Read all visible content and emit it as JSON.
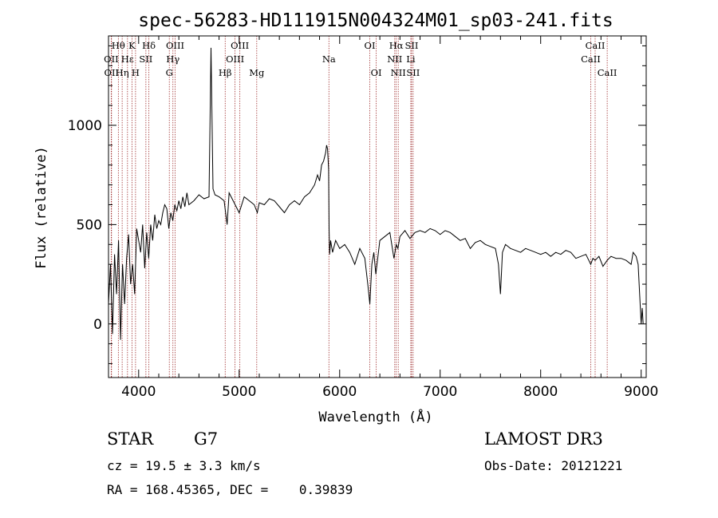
{
  "chart_data": {
    "type": "line",
    "title": "spec-56283-HD111915N004324M01_sp03-241.fits",
    "xlabel": "Wavelength (Å)",
    "ylabel": "Flux (relative)",
    "xlim": [
      3700,
      9050
    ],
    "ylim": [
      -270,
      1450
    ],
    "xticks": [
      4000,
      5000,
      6000,
      7000,
      8000,
      9000
    ],
    "yticks": [
      0,
      500,
      1000
    ],
    "spectral_lines": [
      {
        "label": "Hθ",
        "wavelength": 3798,
        "row": 0
      },
      {
        "label": "K",
        "wavelength": 3934,
        "row": 0
      },
      {
        "label": "Hδ",
        "wavelength": 4102,
        "row": 0
      },
      {
        "label": "OII",
        "wavelength": 3727,
        "row": 1
      },
      {
        "label": "Hε",
        "wavelength": 3889,
        "row": 1
      },
      {
        "label": "SII",
        "wavelength": 4072,
        "row": 1
      },
      {
        "label": "OII",
        "wavelength": 3730,
        "row": 2
      },
      {
        "label": "Hη",
        "wavelength": 3836,
        "row": 2
      },
      {
        "label": "H",
        "wavelength": 3969,
        "row": 2
      },
      {
        "label": "OIII",
        "wavelength": 4363,
        "row": 0
      },
      {
        "label": "Hγ",
        "wavelength": 4341,
        "row": 1
      },
      {
        "label": "G",
        "wavelength": 4305,
        "row": 2
      },
      {
        "label": "OIII",
        "wavelength": 5007,
        "row": 0
      },
      {
        "label": "OIII",
        "wavelength": 4959,
        "row": 1
      },
      {
        "label": "Hβ",
        "wavelength": 4861,
        "row": 2
      },
      {
        "label": "Mg",
        "wavelength": 5175,
        "row": 2
      },
      {
        "label": "Na",
        "wavelength": 5893,
        "row": 1
      },
      {
        "label": "OI",
        "wavelength": 6300,
        "row": 0
      },
      {
        "label": "OI",
        "wavelength": 6364,
        "row": 2
      },
      {
        "label": "Hα",
        "wavelength": 6563,
        "row": 0
      },
      {
        "label": "NII",
        "wavelength": 6548,
        "row": 1
      },
      {
        "label": "NII",
        "wavelength": 6583,
        "row": 2
      },
      {
        "label": "SII",
        "wavelength": 6716,
        "row": 0
      },
      {
        "label": "Li",
        "wavelength": 6708,
        "row": 1
      },
      {
        "label": "SII",
        "wavelength": 6731,
        "row": 2
      },
      {
        "label": "CaII",
        "wavelength": 8542,
        "row": 0
      },
      {
        "label": "CaII",
        "wavelength": 8498,
        "row": 1
      },
      {
        "label": "CaII",
        "wavelength": 8662,
        "row": 2
      }
    ],
    "series": [
      {
        "x": [
          3700,
          3720,
          3740,
          3760,
          3780,
          3800,
          3820,
          3840,
          3860,
          3880,
          3900,
          3920,
          3940,
          3960,
          3980,
          4000,
          4020,
          4040,
          4060,
          4080,
          4100,
          4120,
          4140,
          4160,
          4180,
          4200,
          4220,
          4240,
          4260,
          4280,
          4300,
          4320,
          4340,
          4360,
          4380,
          4400,
          4420,
          4440,
          4460,
          4480,
          4500,
          4550,
          4600,
          4650,
          4700,
          4720,
          4740,
          4760,
          4800,
          4850,
          4880,
          4900,
          4950,
          5000,
          5050,
          5100,
          5150,
          5180,
          5200,
          5250,
          5300,
          5350,
          5400,
          5450,
          5500,
          5550,
          5600,
          5650,
          5700,
          5750,
          5780,
          5800,
          5820,
          5840,
          5860,
          5870,
          5880,
          5890,
          5895,
          5900,
          5910,
          5930,
          5960,
          6000,
          6050,
          6100,
          6150,
          6200,
          6250,
          6280,
          6300,
          6320,
          6340,
          6360,
          6400,
          6450,
          6500,
          6540,
          6563,
          6580,
          6600,
          6650,
          6700,
          6750,
          6800,
          6850,
          6900,
          6950,
          7000,
          7050,
          7100,
          7150,
          7200,
          7250,
          7300,
          7350,
          7400,
          7450,
          7500,
          7550,
          7580,
          7600,
          7620,
          7650,
          7700,
          7750,
          7800,
          7850,
          7900,
          7950,
          8000,
          8050,
          8100,
          8150,
          8200,
          8250,
          8300,
          8350,
          8400,
          8450,
          8498,
          8520,
          8542,
          8580,
          8620,
          8662,
          8700,
          8750,
          8800,
          8850,
          8900,
          8920,
          8950,
          8970,
          8990,
          9000,
          9010,
          9020
        ],
        "y": [
          100,
          300,
          -50,
          350,
          150,
          420,
          -80,
          300,
          100,
          330,
          450,
          200,
          300,
          150,
          480,
          420,
          360,
          500,
          280,
          460,
          330,
          500,
          420,
          550,
          480,
          520,
          500,
          560,
          600,
          580,
          480,
          560,
          520,
          600,
          570,
          620,
          580,
          640,
          590,
          660,
          600,
          620,
          650,
          630,
          640,
          1390,
          680,
          650,
          640,
          620,
          500,
          660,
          610,
          560,
          640,
          620,
          600,
          560,
          610,
          600,
          630,
          620,
          590,
          560,
          600,
          620,
          600,
          640,
          660,
          700,
          750,
          720,
          800,
          820,
          860,
          900,
          880,
          780,
          480,
          350,
          420,
          360,
          420,
          380,
          400,
          360,
          300,
          380,
          330,
          200,
          100,
          300,
          360,
          250,
          420,
          440,
          460,
          330,
          400,
          380,
          440,
          470,
          430,
          460,
          470,
          460,
          480,
          470,
          450,
          470,
          460,
          440,
          420,
          430,
          380,
          410,
          420,
          400,
          390,
          380,
          300,
          150,
          360,
          400,
          380,
          370,
          360,
          380,
          370,
          360,
          350,
          360,
          340,
          360,
          350,
          370,
          360,
          330,
          340,
          350,
          300,
          330,
          320,
          340,
          290,
          320,
          340,
          330,
          330,
          320,
          300,
          360,
          340,
          300,
          100,
          0,
          80,
          0
        ]
      }
    ]
  },
  "info": {
    "obj_class": "STAR",
    "subclass": "G7",
    "survey": "LAMOST DR3",
    "cz": "cz = 19.5 ± 3.3 km/s",
    "obs_date": "Obs-Date: 20121221",
    "radec": "RA = 168.45365, DEC =    0.39839"
  },
  "colors": {
    "spectrum": "#000000",
    "line_marker": "#a03030"
  }
}
